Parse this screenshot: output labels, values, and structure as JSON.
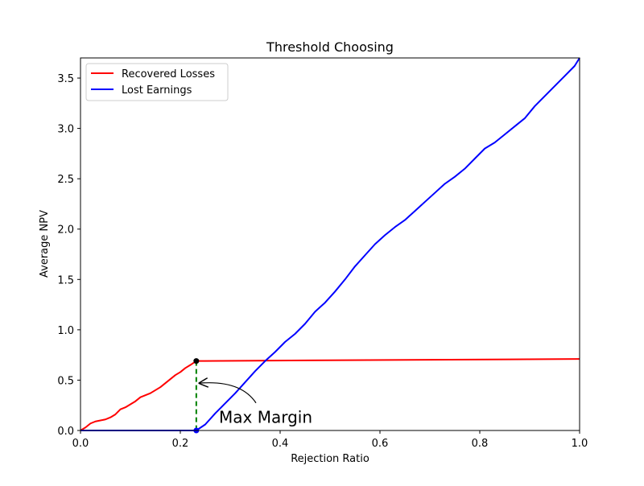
{
  "chart_data": {
    "type": "line",
    "title": "Threshold Choosing",
    "xlabel": "Rejection Ratio",
    "ylabel": "Average NPV",
    "xlim": [
      0.0,
      1.0
    ],
    "ylim": [
      0.0,
      3.7
    ],
    "x_ticks": [
      "0.0",
      "0.2",
      "0.4",
      "0.6",
      "0.8",
      "1.0"
    ],
    "y_ticks": [
      "0.0",
      "0.5",
      "1.0",
      "1.5",
      "2.0",
      "2.5",
      "3.0",
      "3.5"
    ],
    "grid": false,
    "legend_position": "upper-left",
    "series": [
      {
        "name": "Recovered Losses",
        "color": "#ff0000",
        "points": [
          [
            0.0,
            0.0
          ],
          [
            0.01,
            0.03
          ],
          [
            0.02,
            0.07
          ],
          [
            0.03,
            0.09
          ],
          [
            0.04,
            0.1
          ],
          [
            0.05,
            0.11
          ],
          [
            0.06,
            0.13
          ],
          [
            0.07,
            0.16
          ],
          [
            0.08,
            0.21
          ],
          [
            0.09,
            0.23
          ],
          [
            0.1,
            0.26
          ],
          [
            0.11,
            0.29
          ],
          [
            0.12,
            0.33
          ],
          [
            0.13,
            0.35
          ],
          [
            0.14,
            0.37
          ],
          [
            0.15,
            0.4
          ],
          [
            0.16,
            0.43
          ],
          [
            0.17,
            0.47
          ],
          [
            0.18,
            0.51
          ],
          [
            0.19,
            0.55
          ],
          [
            0.2,
            0.58
          ],
          [
            0.21,
            0.62
          ],
          [
            0.22,
            0.65
          ],
          [
            0.232,
            0.69
          ],
          [
            1.0,
            0.71
          ]
        ]
      },
      {
        "name": "Lost Earnings",
        "color": "#0000ff",
        "points": [
          [
            0.0,
            0.0
          ],
          [
            0.232,
            0.0
          ],
          [
            0.25,
            0.06
          ],
          [
            0.27,
            0.17
          ],
          [
            0.29,
            0.27
          ],
          [
            0.31,
            0.37
          ],
          [
            0.33,
            0.48
          ],
          [
            0.35,
            0.59
          ],
          [
            0.37,
            0.69
          ],
          [
            0.39,
            0.78
          ],
          [
            0.41,
            0.88
          ],
          [
            0.43,
            0.96
          ],
          [
            0.45,
            1.06
          ],
          [
            0.47,
            1.18
          ],
          [
            0.49,
            1.27
          ],
          [
            0.51,
            1.38
          ],
          [
            0.53,
            1.5
          ],
          [
            0.55,
            1.63
          ],
          [
            0.57,
            1.74
          ],
          [
            0.59,
            1.85
          ],
          [
            0.61,
            1.94
          ],
          [
            0.63,
            2.02
          ],
          [
            0.65,
            2.09
          ],
          [
            0.67,
            2.18
          ],
          [
            0.69,
            2.27
          ],
          [
            0.71,
            2.36
          ],
          [
            0.73,
            2.45
          ],
          [
            0.75,
            2.52
          ],
          [
            0.77,
            2.6
          ],
          [
            0.79,
            2.7
          ],
          [
            0.81,
            2.8
          ],
          [
            0.83,
            2.86
          ],
          [
            0.85,
            2.94
          ],
          [
            0.87,
            3.02
          ],
          [
            0.89,
            3.1
          ],
          [
            0.91,
            3.22
          ],
          [
            0.93,
            3.32
          ],
          [
            0.95,
            3.42
          ],
          [
            0.97,
            3.52
          ],
          [
            0.99,
            3.62
          ],
          [
            1.0,
            3.7
          ]
        ]
      }
    ],
    "annotation": {
      "text": "Max Margin",
      "marker_x": 0.232,
      "marker_y": 0.69,
      "marker_y_bottom": 0.0,
      "arrow_target_y": 0.47,
      "line_color": "#008000",
      "marker_color": "#000000"
    }
  }
}
